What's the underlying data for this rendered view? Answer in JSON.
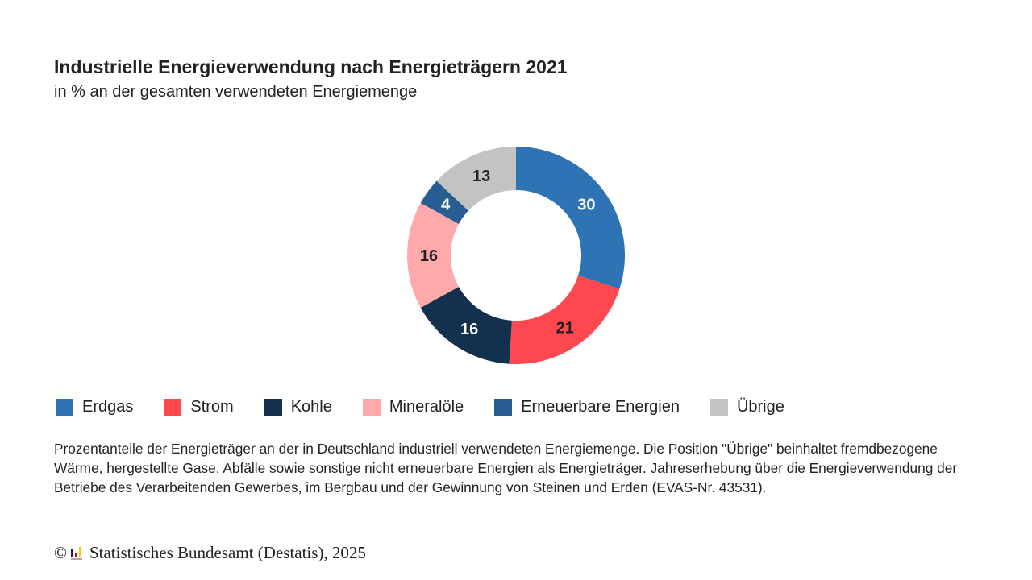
{
  "chart_data": {
    "type": "pie",
    "variant": "donut",
    "title": "Industrielle Energieverwendung nach Energieträgern 2021",
    "subtitle": "in % an der gesamten verwendeten Energiemenge",
    "categories": [
      "Erdgas",
      "Strom",
      "Kohle",
      "Mineralöle",
      "Erneuerbare Energien",
      "Übrige"
    ],
    "values": [
      30,
      21,
      16,
      16,
      4,
      13
    ],
    "colors": [
      "#2e74b5",
      "#ff474f",
      "#14304f",
      "#ffa9aa",
      "#275d91",
      "#c3c3c3"
    ],
    "label_colors": [
      "#ffffff",
      "#222222",
      "#ffffff",
      "#222222",
      "#ffffff",
      "#222222"
    ],
    "legend_placement": "bottom",
    "start": "top, clockwise"
  },
  "note": "Prozentanteile der Energieträger an der in Deutschland industriell verwendeten Energiemenge. Die Position \"Übrige\" beinhaltet fremdbezogene Wärme, hergestellte Gase, Abfälle sowie sonstige nicht erneuerbare Energien als Energieträger. Jahreserhebung über die Energieverwendung der Betriebe des Verarbeitenden Gewerbes, im Bergbau und der Gewinnung von Steinen und Erden (EVAS-Nr. 43531).",
  "footer": {
    "copyright": "©",
    "source": "Statistisches Bundesamt (Destatis), 2025",
    "logo_icon": "destatis-logo-icon"
  }
}
